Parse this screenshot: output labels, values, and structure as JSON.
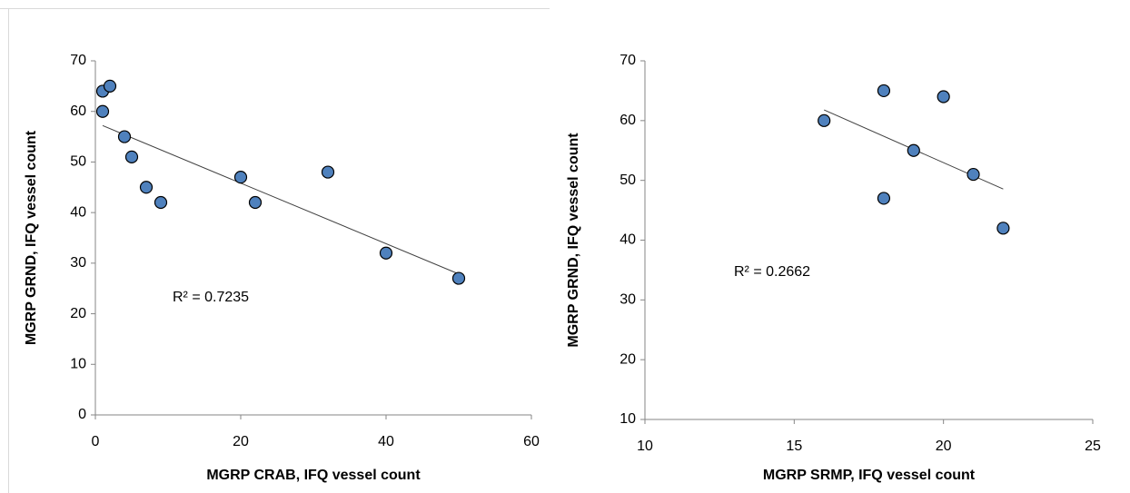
{
  "chart_data": [
    {
      "type": "scatter",
      "x_label": "MGRP CRAB, IFQ vessel count",
      "y_label": "MGRP GRND, IFQ vessel count",
      "annotation": "R² = 0.7235",
      "x": [
        1,
        1,
        2,
        4,
        5,
        7,
        9,
        20,
        22,
        32,
        40,
        50
      ],
      "y": [
        64,
        60,
        65,
        55,
        51,
        45,
        42,
        47,
        42,
        48,
        32,
        27
      ],
      "color": "#4f81bd",
      "trendline": true,
      "xlim": [
        0,
        60
      ],
      "xticks": [
        0,
        20,
        40,
        60
      ],
      "ylim": [
        0,
        70
      ],
      "yticks": [
        0,
        10,
        20,
        30,
        40,
        50,
        60,
        70
      ],
      "grid": false
    },
    {
      "type": "scatter",
      "x_label": "MGRP SRMP, IFQ vessel count",
      "y_label": "MGRP GRND, IFQ vessel count",
      "annotation": "R² = 0.2662",
      "x": [
        16,
        18,
        18,
        19,
        20,
        21,
        22
      ],
      "y": [
        60,
        65,
        47,
        55,
        64,
        51,
        42
      ],
      "color": "#4f81bd",
      "trendline": true,
      "xlim": [
        10,
        25
      ],
      "xticks": [
        10,
        15,
        20,
        25
      ],
      "ylim": [
        10,
        70
      ],
      "yticks": [
        10,
        20,
        30,
        40,
        50,
        60,
        70
      ],
      "grid": false
    }
  ]
}
